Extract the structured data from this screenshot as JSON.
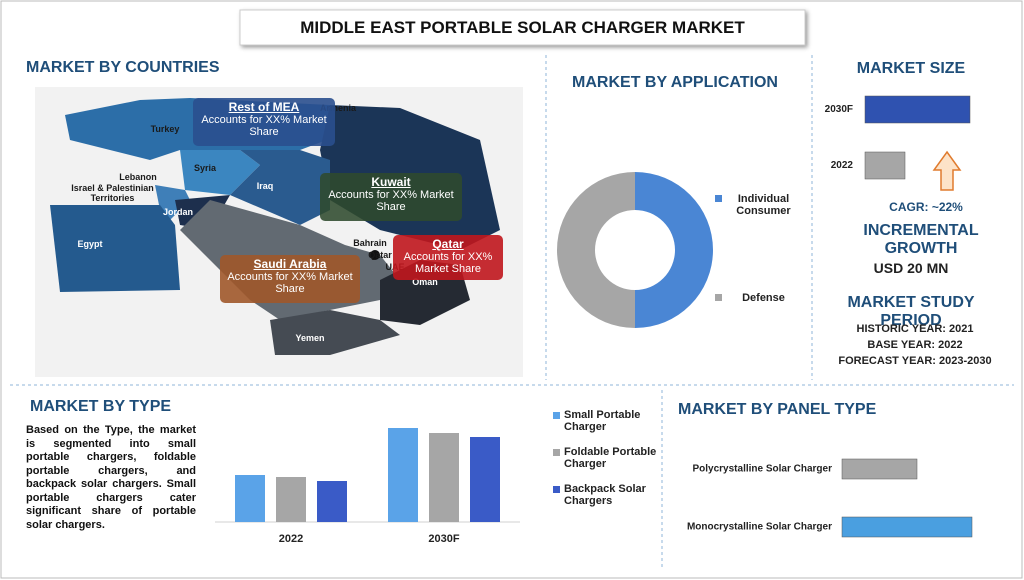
{
  "title": "MIDDLE EAST PORTABLE SOLAR CHARGER MARKET",
  "countries": {
    "heading": "MARKET BY COUNTRIES",
    "map_labels": [
      "Armenia",
      "Turkey",
      "Syria",
      "Lebanon",
      "Israel & Palestinian Territories",
      "Iraq",
      "Jordan",
      "Egypt",
      "Bahrain",
      "Qatar",
      "UAE",
      "Oman",
      "Yemen"
    ],
    "callouts": [
      {
        "region": "Rest of MEA",
        "text": "Accounts for XX% Market Share"
      },
      {
        "region": "Kuwait",
        "text": "Accounts for XX% Market Share"
      },
      {
        "region": "Saudi Arabia",
        "text": "Accounts for XX% Market Share"
      },
      {
        "region": "Qatar",
        "text": "Accounts for XX% Market Share"
      }
    ]
  },
  "market_size_info": {
    "cagr": "CAGR:  ~22%",
    "incremental_heading": "INCREMENTAL GROWTH",
    "incremental_value": "USD 20 MN",
    "study_heading": "MARKET STUDY PERIOD",
    "study_lines": [
      "HISTORIC YEAR: 2021",
      "BASE YEAR: 2022",
      "FORECAST YEAR: 2023-2030"
    ]
  },
  "type_text": "Based on the Type, the market is segmented into small portable chargers, foldable portable chargers, and backpack solar chargers. Small portable chargers cater significant share of portable solar chargers.",
  "chart_data": [
    {
      "type": "pie",
      "title": "MARKET BY APPLICATION",
      "donut": true,
      "categories": [
        "Individual Consumer",
        "Defense"
      ],
      "values": [
        50,
        50
      ],
      "colors": [
        "#4a86d4",
        "#a6a6a6"
      ]
    },
    {
      "type": "bar",
      "title": "MARKET SIZE",
      "orientation": "horizontal",
      "categories": [
        "2030F",
        "2022"
      ],
      "values": [
        105,
        40
      ],
      "colors": [
        "#2f52b0",
        "#a6a6a6"
      ]
    },
    {
      "type": "bar",
      "title": "MARKET BY TYPE",
      "categories": [
        "2022",
        "2030F"
      ],
      "series": [
        {
          "name": "Small Portable Charger",
          "color": "#5aa3e8",
          "values": [
            47,
            94
          ]
        },
        {
          "name": "Foldable Portable Charger",
          "color": "#a6a6a6",
          "values": [
            45,
            89
          ]
        },
        {
          "name": "Backpack Solar Chargers",
          "color": "#3a5bc7",
          "values": [
            41,
            85
          ]
        }
      ]
    },
    {
      "type": "bar",
      "title": "MARKET BY PANEL TYPE",
      "orientation": "horizontal",
      "categories": [
        "Polycrystalline Solar Charger",
        "Monocrystalline Solar Charger"
      ],
      "values": [
        75,
        130
      ],
      "colors": [
        "#a6a6a6",
        "#4a9fe0"
      ]
    }
  ]
}
